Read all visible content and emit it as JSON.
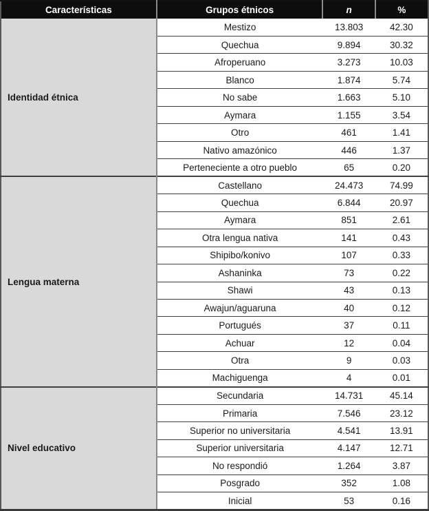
{
  "table": {
    "headers": {
      "caracteristicas": "Características",
      "grupos": "Grupos étnicos",
      "n": "n",
      "pct": "%"
    },
    "sections": [
      {
        "label": "Identidad étnica",
        "rows": [
          [
            "Mestizo",
            "13.803",
            "42.30"
          ],
          [
            "Quechua",
            "9.894",
            "30.32"
          ],
          [
            "Afroperuano",
            "3.273",
            "10.03"
          ],
          [
            "Blanco",
            "1.874",
            "5.74"
          ],
          [
            "No sabe",
            "1.663",
            "5.10"
          ],
          [
            "Aymara",
            "1.155",
            "3.54"
          ],
          [
            "Otro",
            "461",
            "1.41"
          ],
          [
            "Nativo amazónico",
            "446",
            "1.37"
          ],
          [
            "Perteneciente a otro pueblo",
            "65",
            "0.20"
          ]
        ]
      },
      {
        "label": "Lengua materna",
        "rows": [
          [
            "Castellano",
            "24.473",
            "74.99"
          ],
          [
            "Quechua",
            "6.844",
            "20.97"
          ],
          [
            "Aymara",
            "851",
            "2.61"
          ],
          [
            "Otra lengua nativa",
            "141",
            "0.43"
          ],
          [
            "Shipibo/konivo",
            "107",
            "0.33"
          ],
          [
            "Ashaninka",
            "73",
            "0.22"
          ],
          [
            "Shawi",
            "43",
            "0.13"
          ],
          [
            "Awajun/aguaruna",
            "40",
            "0.12"
          ],
          [
            "Portugués",
            "37",
            "0.11"
          ],
          [
            "Achuar",
            "12",
            "0.04"
          ],
          [
            "Otra",
            "9",
            "0.03"
          ],
          [
            "Machiguenga",
            "4",
            "0.01"
          ]
        ]
      },
      {
        "label": "Nivel educativo",
        "rows": [
          [
            "Secundaria",
            "14.731",
            "45.14"
          ],
          [
            "Primaria",
            "7.546",
            "23.12"
          ],
          [
            "Superior no universitaria",
            "4.541",
            "13.91"
          ],
          [
            "Superior universitaria",
            "4.147",
            "12.71"
          ],
          [
            "No respondió",
            "1.264",
            "3.87"
          ],
          [
            "Posgrado",
            "352",
            "1.08"
          ],
          [
            "Inicial",
            "53",
            "0.16"
          ]
        ]
      }
    ]
  },
  "colors": {
    "header_bg": "#0d0d0d",
    "header_text": "#ffffff",
    "category_bg": "#d9d9d9",
    "row_line": "#404040",
    "column_divider": "#8a8a8a",
    "body_text": "#1a1a1a"
  }
}
